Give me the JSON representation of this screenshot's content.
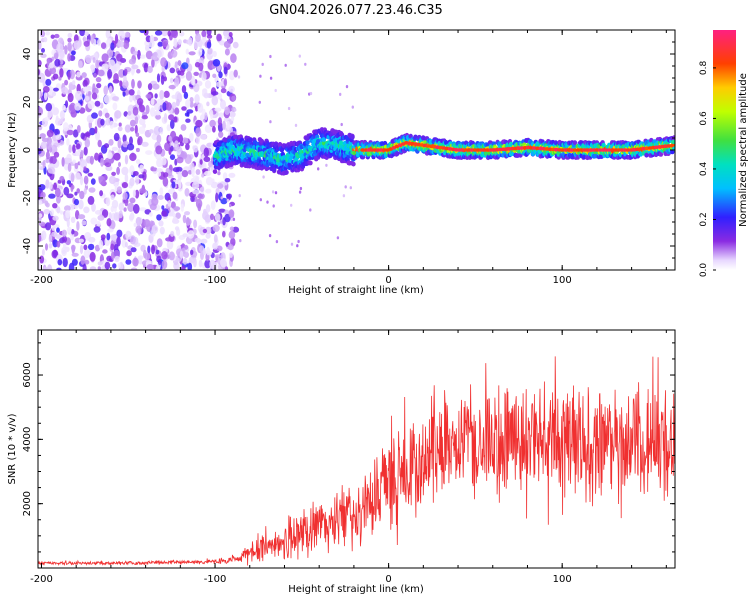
{
  "figure_title": "GN04.2026.077.23.46.C35",
  "chart_data": [
    {
      "type": "heatmap",
      "title": "GN04.2026.077.23.46.C35",
      "xlabel": "Height of straight line (km)",
      "ylabel": "Frequency (Hz)",
      "xlim": [
        -202,
        165
      ],
      "ylim": [
        -50,
        50
      ],
      "xticks": [
        -200,
        -100,
        0,
        100
      ],
      "yticks": [
        -40,
        -20,
        0,
        20,
        40
      ],
      "xtick_labels": [
        "-200",
        "-100",
        "0",
        "100"
      ],
      "ytick_labels": [
        "-40",
        "-20",
        "0",
        "20",
        "40"
      ],
      "colorbar": {
        "label": "Normalized spectral amplitude",
        "range": [
          0,
          0.95
        ],
        "ticks": [
          0.0,
          0.2,
          0.4,
          0.6,
          0.8
        ],
        "tick_labels": [
          "0.0",
          "0.2",
          "0.4",
          "0.6",
          "0.8"
        ],
        "colormap": "rainbow (violet-blue-cyan-green-yellow-orange-red-magenta)"
      },
      "regions": [
        {
          "x_range": [
            -202,
            -88
          ],
          "description": "broadband noise, low amplitude",
          "amplitude": [
            0.0,
            0.12
          ]
        },
        {
          "x_range": [
            -100,
            -20
          ],
          "description": "emerging signal near 0 Hz",
          "frequency_center_hz": 0,
          "frequency_spread_hz": 8,
          "amplitude": [
            0.2,
            0.5
          ]
        },
        {
          "x_range": [
            -20,
            165
          ],
          "description": "strong narrow signal near 0 Hz",
          "frequency_center_hz": 0,
          "frequency_spread_hz": 4,
          "amplitude": [
            0.5,
            0.95
          ]
        }
      ],
      "ridge_frequency_hz": [
        {
          "x": -100,
          "y": -3
        },
        {
          "x": -90,
          "y": 0
        },
        {
          "x": -80,
          "y": -1
        },
        {
          "x": -70,
          "y": -2
        },
        {
          "x": -60,
          "y": -4
        },
        {
          "x": -50,
          "y": -2
        },
        {
          "x": -40,
          "y": 3
        },
        {
          "x": -30,
          "y": 2
        },
        {
          "x": -20,
          "y": 0
        },
        {
          "x": 0,
          "y": 0
        },
        {
          "x": 10,
          "y": 3
        },
        {
          "x": 20,
          "y": 2
        },
        {
          "x": 40,
          "y": 0
        },
        {
          "x": 60,
          "y": 0
        },
        {
          "x": 80,
          "y": 1
        },
        {
          "x": 100,
          "y": 0
        },
        {
          "x": 120,
          "y": 0
        },
        {
          "x": 140,
          "y": 0
        },
        {
          "x": 165,
          "y": 2
        }
      ]
    },
    {
      "type": "line",
      "xlabel": "Height of straight line (km)",
      "ylabel": "SNR (10 * v/v)",
      "xlim": [
        -202,
        165
      ],
      "ylim": [
        0,
        7400
      ],
      "xticks": [
        -200,
        -100,
        0,
        100
      ],
      "yticks": [
        2000,
        4000,
        6000
      ],
      "xtick_labels": [
        "-200",
        "-100",
        "0",
        "100"
      ],
      "ytick_labels": [
        "2000",
        "4000",
        "6000"
      ],
      "series": [
        {
          "name": "SNR",
          "color": "#f03030",
          "envelope": {
            "x": [
              -202,
              -150,
              -100,
              -85,
              -75,
              -60,
              -40,
              -20,
              -10,
              0,
              10,
              20,
              30,
              50,
              70,
              100,
              130,
              165
            ],
            "mean": [
              150,
              150,
              200,
              300,
              600,
              900,
              1300,
              1700,
              2200,
              2700,
              3000,
              3500,
              3900,
              4000,
              4000,
              3900,
              3900,
              3800
            ],
            "amplitude": [
              60,
              60,
              80,
              200,
              500,
              800,
              1000,
              1300,
              1600,
              1700,
              1800,
              1900,
              2000,
              2100,
              2200,
              2100,
              2000,
              2000
            ]
          }
        }
      ]
    }
  ]
}
